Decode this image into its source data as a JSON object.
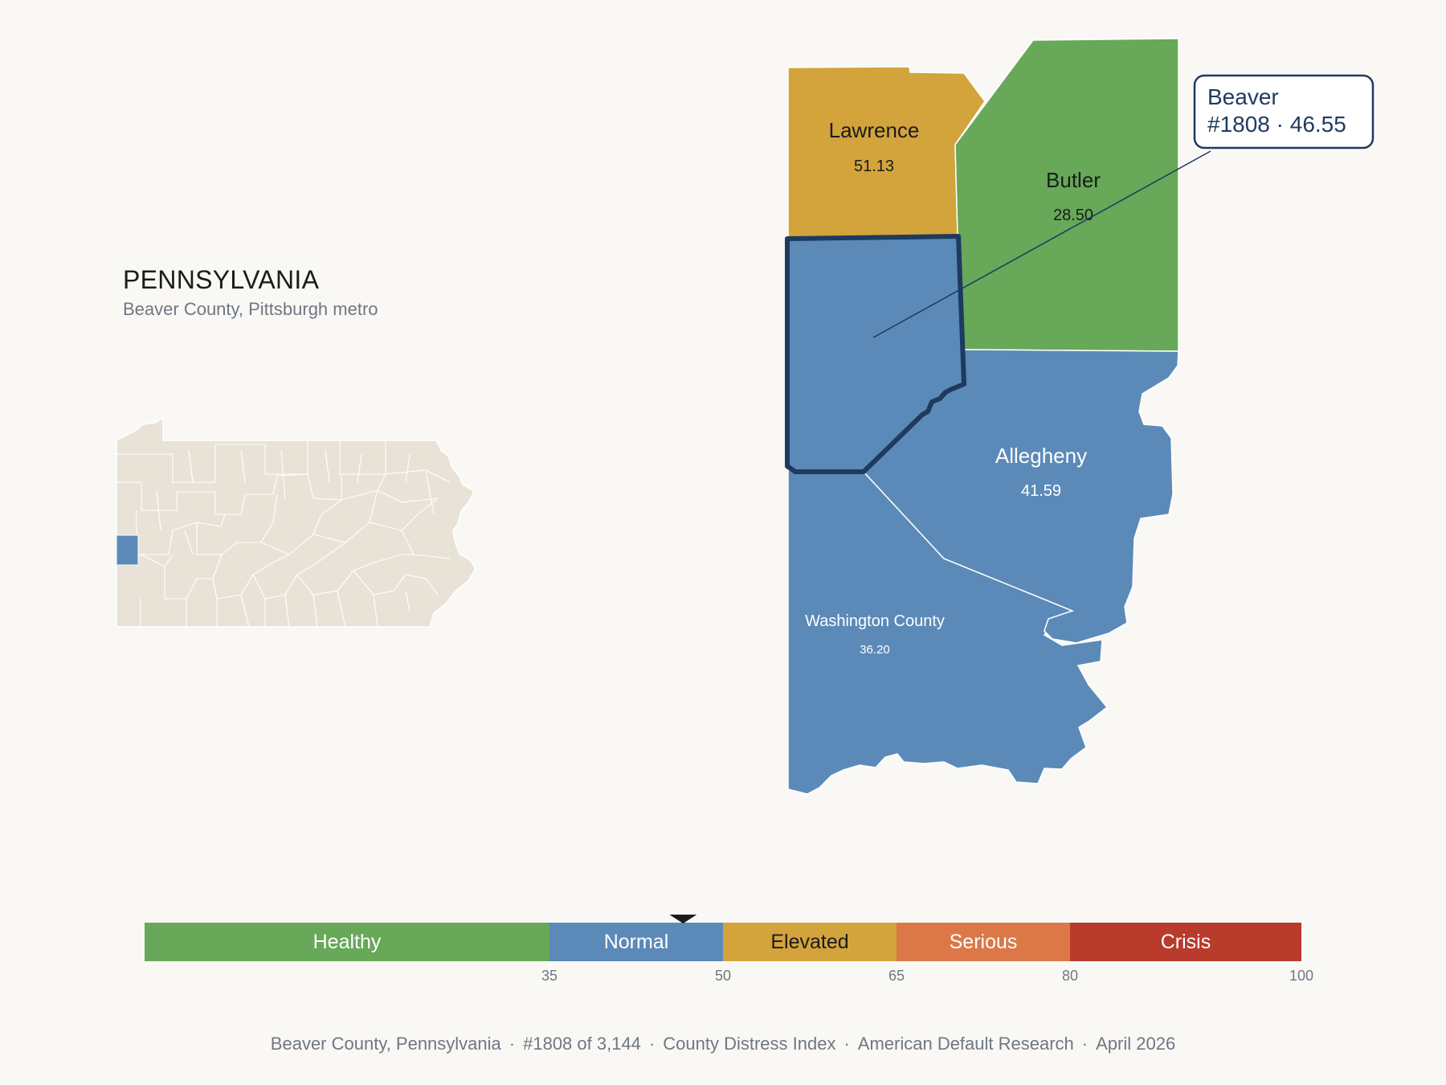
{
  "state_panel": {
    "title": "PENNSYLVANIA",
    "subtitle": "Beaver County, Pittsburgh metro"
  },
  "counties": {
    "lawrence": {
      "name": "Lawrence",
      "value": "51.13",
      "color": "#d3a33c"
    },
    "butler": {
      "name": "Butler",
      "value": "28.50",
      "color": "#67a859"
    },
    "beaver": {
      "name": "",
      "value": "",
      "color": "#5b8ab8",
      "highlight": "#1e3a5f"
    },
    "allegheny": {
      "name": "Allegheny",
      "value": "41.59",
      "color": "#5b8ab8"
    },
    "washington": {
      "name": "Washington County",
      "value": "36.20",
      "color": "#5b8ab8"
    }
  },
  "callout": {
    "line1": "Beaver",
    "line2": "#1808 · 46.55"
  },
  "scale": {
    "min": 0,
    "max": 100,
    "marker_value": 46.55,
    "bands": [
      {
        "label": "Healthy",
        "from": 0,
        "to": 35,
        "color": "#67a859"
      },
      {
        "label": "Normal",
        "from": 35,
        "to": 50,
        "color": "#5b8ab8"
      },
      {
        "label": "Elevated",
        "from": 50,
        "to": 65,
        "color": "#d3a33c"
      },
      {
        "label": "Serious",
        "from": 65,
        "to": 80,
        "color": "#dc7848"
      },
      {
        "label": "Crisis",
        "from": 80,
        "to": 100,
        "color": "#b83b2c"
      }
    ],
    "ticks": [
      "35",
      "50",
      "65",
      "80",
      "100"
    ]
  },
  "footer": {
    "county": "Beaver County, Pennsylvania",
    "rank": "#1808 of 3,144",
    "index": "County Distress Index",
    "org": "American Default Research",
    "date": "April 2026"
  }
}
